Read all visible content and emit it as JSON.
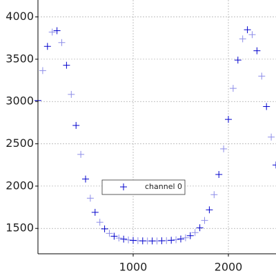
{
  "chart_data": {
    "type": "scatter",
    "x": [
      0,
      50,
      100,
      150,
      200,
      250,
      300,
      350,
      400,
      450,
      500,
      550,
      600,
      650,
      700,
      750,
      800,
      850,
      900,
      950,
      1000,
      1050,
      1100,
      1150,
      1200,
      1250,
      1300,
      1350,
      1400,
      1450,
      1500,
      1550,
      1600,
      1650,
      1700,
      1750,
      1800,
      1850,
      1900,
      1950,
      2000,
      2050,
      2100,
      2150,
      2200,
      2250,
      2300,
      2350,
      2400,
      2450,
      2500
    ],
    "series": [
      {
        "name": "channel 0",
        "color": "#0000cc",
        "values": [
          3012,
          3365,
          3652,
          3821,
          3837,
          3697,
          3429,
          3084,
          2717,
          2375,
          2084,
          1857,
          1690,
          1573,
          1494,
          1442,
          1408,
          1386,
          1373,
          1364,
          1359,
          1355,
          1353,
          1352,
          1352,
          1352,
          1354,
          1356,
          1360,
          1366,
          1375,
          1390,
          1414,
          1451,
          1508,
          1594,
          1720,
          1899,
          2138,
          2440,
          2789,
          3155,
          3490,
          3740,
          3848,
          3790,
          3600,
          3300,
          2940,
          2580,
          2250
        ]
      }
    ],
    "xlim": [
      0,
      2500
    ],
    "ylim": [
      1200,
      4200
    ],
    "xticks": [
      1000,
      2000
    ],
    "yticks": [
      1500,
      2000,
      2500,
      3000,
      3500,
      4000
    ],
    "grid": true
  }
}
